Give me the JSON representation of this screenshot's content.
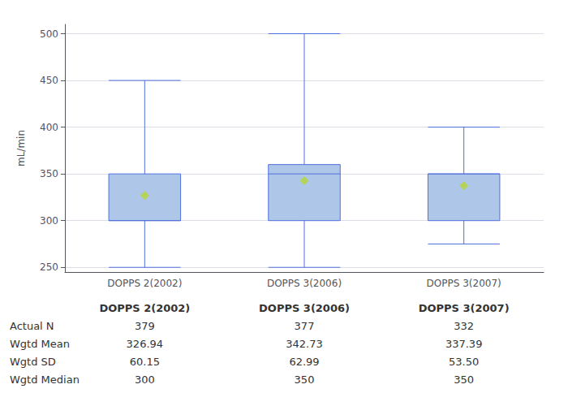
{
  "chart_data": {
    "type": "box",
    "ylabel": "mL/min",
    "categories": [
      "DOPPS 2(2002)",
      "DOPPS 3(2006)",
      "DOPPS 3(2007)"
    ],
    "whisker_low": [
      250,
      250,
      275
    ],
    "q1": [
      300,
      300,
      300
    ],
    "median": [
      300,
      350,
      350
    ],
    "q3": [
      350,
      360,
      350
    ],
    "whisker_high": [
      450,
      500,
      400
    ],
    "mean": [
      326.94,
      342.73,
      337.39
    ],
    "marker": "diamond",
    "color": "#aec6e8",
    "ylim": [
      245,
      510
    ],
    "yticks": [
      250,
      300,
      350,
      400,
      450,
      500
    ],
    "grid": true,
    "table": {
      "row_labels": [
        "Actual N",
        "Wgtd Mean",
        "Wgtd SD",
        "Wgtd Median"
      ],
      "columns": [
        [
          "379",
          "326.94",
          "60.15",
          "300"
        ],
        [
          "377",
          "342.73",
          "62.99",
          "350"
        ],
        [
          "332",
          "337.39",
          "53.50",
          "350"
        ]
      ]
    }
  }
}
